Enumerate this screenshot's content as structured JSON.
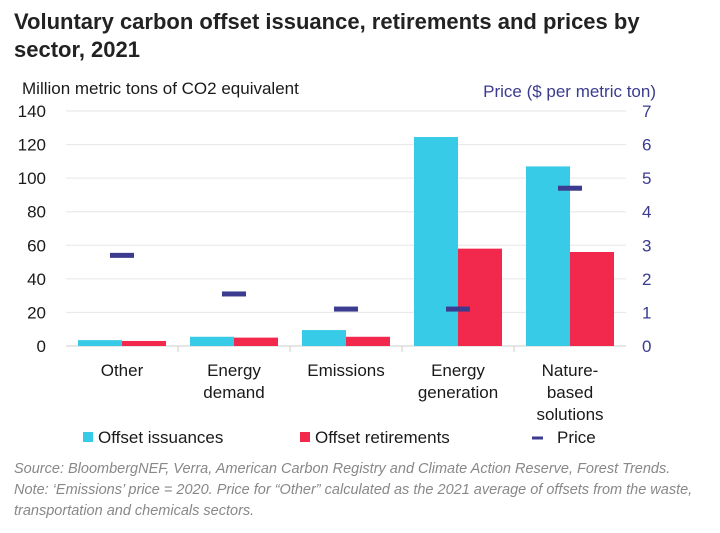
{
  "title": "Voluntary carbon offset issuance, retirements and prices by sector, 2021",
  "source": "Source: BloombergNEF, Verra, American Carbon Registry and Climate Action Reserve, Forest Trends. Note: ‘Emissions’ price = 2020. Price for “Other” calculated as the 2021 average of offsets from the waste, transportation and chemicals sectors.",
  "colors": {
    "issuances": "#38cbe8",
    "retirements": "#f2294d",
    "price": "#3b3b8f",
    "grid": "#e6e6e6"
  },
  "chart_data": {
    "type": "bar",
    "title": "Voluntary carbon offset issuance, retirements and prices by sector, 2021",
    "ylabel": "Million metric tons of CO2 equivalent",
    "y2label": "Price ($ per metric ton)",
    "ylim": [
      0,
      140
    ],
    "y2lim": [
      0,
      7
    ],
    "yticks": [
      0,
      20,
      40,
      60,
      80,
      100,
      120,
      140
    ],
    "y2ticks": [
      0,
      1,
      2,
      3,
      4,
      5,
      6,
      7
    ],
    "categories": [
      [
        "Other"
      ],
      [
        "Energy",
        "demand"
      ],
      [
        "Emissions"
      ],
      [
        "Energy",
        "generation"
      ],
      [
        "Nature-",
        "based",
        "solutions"
      ]
    ],
    "series": [
      {
        "name": "Offset issuances",
        "values": [
          3.5,
          5.5,
          9.5,
          124.5,
          107
        ]
      },
      {
        "name": "Offset retirements",
        "values": [
          3,
          5,
          5.5,
          58,
          56
        ]
      }
    ],
    "price": {
      "name": "Price",
      "values": [
        2.7,
        1.55,
        1.1,
        1.1,
        4.7
      ]
    },
    "legend_position": "bottom",
    "grid": true
  }
}
